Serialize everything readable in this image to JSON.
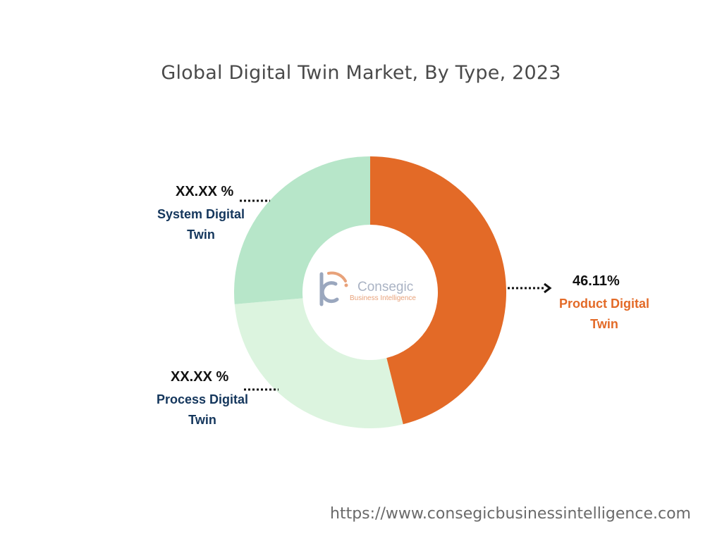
{
  "chart_data": {
    "type": "pie",
    "title": "Global Digital Twin Market, By Type, 2023",
    "donut": true,
    "slices": [
      {
        "label": "Product Digital Twin",
        "value_text": "46.11%",
        "value": 46.11,
        "color": "#e36a27",
        "label_color": "#e36a27"
      },
      {
        "label": "Process Digital Twin",
        "value_text": "XX.XX %",
        "value": 27.5,
        "color": "#dcf4df",
        "label_color": "#14365c"
      },
      {
        "label": "System Digital Twin",
        "value_text": "XX.XX %",
        "value": 26.39,
        "color": "#b7e6c9",
        "label_color": "#14365c"
      }
    ]
  },
  "logo": {
    "name": "Consegic",
    "tagline": "Business Intelligence",
    "colors": {
      "accent": "#e8a27a",
      "main": "#9aa7be"
    }
  },
  "source_url": "https://www.consegicbusinessintelligence.com"
}
